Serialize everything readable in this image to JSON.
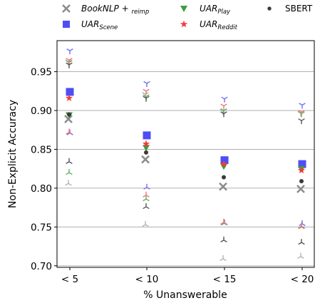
{
  "chart_data": {
    "type": "scatter",
    "categories": [
      "< 5",
      "< 10",
      "< 15",
      "< 20"
    ],
    "xlabel": "% Unanswerable",
    "ylabel": "Non-Explicit Accuracy",
    "ylim": [
      0.698,
      0.99
    ],
    "yticks": [
      0.7,
      0.75,
      0.8,
      0.85,
      0.9,
      0.95
    ],
    "ytick_labels": [
      "0.70",
      "0.75",
      "0.80",
      "0.85",
      "0.90",
      "0.95"
    ],
    "grid": "horizontal",
    "legend_position": "top, outside plot",
    "series": [
      {
        "key": "booknlp",
        "legend": {
          "base": "BookNLP + ",
          "sub": "reimp"
        },
        "marker": "x",
        "color": "#8c8c8c",
        "light_color": "#b3b3b3",
        "values": [
          0.889,
          0.837,
          0.802,
          0.799
        ],
        "upper": [
          0.963,
          0.921,
          0.899,
          0.897
        ],
        "lower": [
          0.806,
          0.753,
          0.709,
          0.712
        ]
      },
      {
        "key": "uar_scene",
        "legend": {
          "base": "UAR",
          "sub": "Scene"
        },
        "marker": "square",
        "color": "#3b3bf5",
        "light_color": "#6e6ef5",
        "values": [
          0.924,
          0.868,
          0.836,
          0.831
        ],
        "upper": [
          0.977,
          0.935,
          0.915,
          0.907
        ],
        "lower": [
          0.871,
          0.801,
          0.755,
          0.754
        ]
      },
      {
        "key": "uar_play",
        "legend": {
          "base": "UAR",
          "sub": "Play"
        },
        "marker": "triangle-down",
        "color": "#3f9b3f",
        "light_color": "#63b063",
        "values": [
          0.894,
          0.852,
          0.828,
          0.825
        ],
        "upper": [
          0.962,
          0.918,
          0.9,
          0.896
        ],
        "lower": [
          0.82,
          0.786,
          0.755,
          0.751
        ]
      },
      {
        "key": "uar_reddit",
        "legend": {
          "base": "UAR",
          "sub": "Reddit"
        },
        "marker": "star",
        "color": "#f03c3c",
        "light_color": "#f27575",
        "values": [
          0.916,
          0.857,
          0.831,
          0.823
        ],
        "upper": [
          0.965,
          0.925,
          0.906,
          0.898
        ],
        "lower": [
          0.872,
          0.791,
          0.756,
          0.75
        ]
      },
      {
        "key": "sbert",
        "legend": {
          "base": "SBERT",
          "sub": ""
        },
        "marker": "dot",
        "color": "#3a3a3a",
        "light_color": "#555555",
        "values": [
          0.895,
          0.846,
          0.814,
          0.809
        ],
        "upper": [
          0.959,
          0.916,
          0.896,
          0.887
        ],
        "lower": [
          0.834,
          0.776,
          0.733,
          0.73
        ]
      }
    ]
  }
}
